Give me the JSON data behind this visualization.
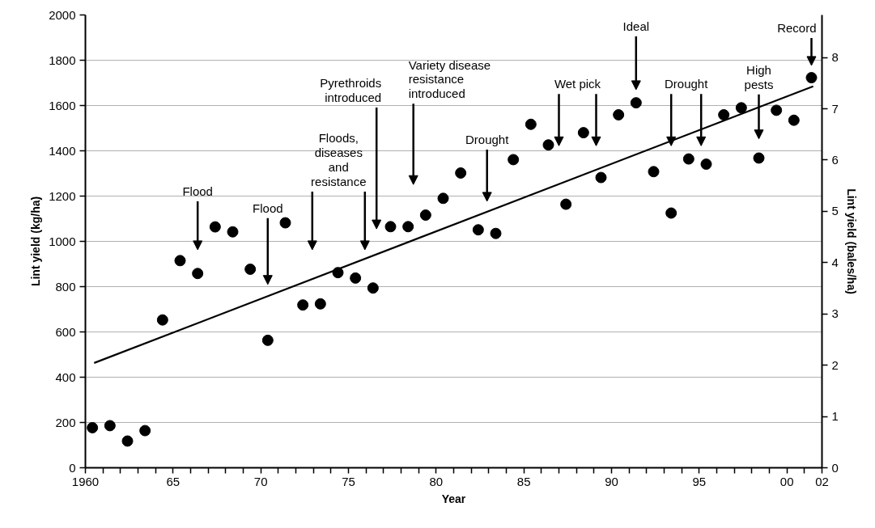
{
  "chart_data": {
    "type": "scatter",
    "xlabel": "Year",
    "ylabel": "Lint yield (kg/ha)",
    "y2label": "Lint yield (bales/ha)",
    "xlim": [
      1960,
      2002
    ],
    "ylim": [
      0,
      2000
    ],
    "y2lim": [
      0,
      8.83
    ],
    "xticks": [
      {
        "value": 1960,
        "label": "1960"
      },
      {
        "value": 1961,
        "label": null
      },
      {
        "value": 1962,
        "label": null
      },
      {
        "value": 1963,
        "label": null
      },
      {
        "value": 1964,
        "label": null
      },
      {
        "value": 1965,
        "label": "65"
      },
      {
        "value": 1966,
        "label": null
      },
      {
        "value": 1967,
        "label": null
      },
      {
        "value": 1968,
        "label": null
      },
      {
        "value": 1969,
        "label": null
      },
      {
        "value": 1970,
        "label": "70"
      },
      {
        "value": 1971,
        "label": null
      },
      {
        "value": 1972,
        "label": null
      },
      {
        "value": 1973,
        "label": null
      },
      {
        "value": 1974,
        "label": null
      },
      {
        "value": 1975,
        "label": "75"
      },
      {
        "value": 1976,
        "label": null
      },
      {
        "value": 1977,
        "label": null
      },
      {
        "value": 1978,
        "label": null
      },
      {
        "value": 1979,
        "label": null
      },
      {
        "value": 1980,
        "label": "80"
      },
      {
        "value": 1981,
        "label": null
      },
      {
        "value": 1982,
        "label": null
      },
      {
        "value": 1983,
        "label": null
      },
      {
        "value": 1984,
        "label": null
      },
      {
        "value": 1985,
        "label": "85"
      },
      {
        "value": 1986,
        "label": null
      },
      {
        "value": 1987,
        "label": null
      },
      {
        "value": 1988,
        "label": null
      },
      {
        "value": 1989,
        "label": null
      },
      {
        "value": 1990,
        "label": "90"
      },
      {
        "value": 1991,
        "label": null
      },
      {
        "value": 1992,
        "label": null
      },
      {
        "value": 1993,
        "label": null
      },
      {
        "value": 1994,
        "label": null
      },
      {
        "value": 1995,
        "label": "95"
      },
      {
        "value": 1996,
        "label": null
      },
      {
        "value": 1997,
        "label": null
      },
      {
        "value": 1998,
        "label": null
      },
      {
        "value": 1999,
        "label": null
      },
      {
        "value": 2000,
        "label": "00"
      },
      {
        "value": 2001,
        "label": null
      },
      {
        "value": 2002,
        "label": "02"
      }
    ],
    "yticks": [
      0,
      200,
      400,
      600,
      800,
      1000,
      1200,
      1400,
      1600,
      1800,
      2000
    ],
    "y2ticks": [
      0,
      1,
      2,
      3,
      4,
      5,
      6,
      7,
      8
    ],
    "grid": "y",
    "series": [
      {
        "marker": "circle",
        "color": "#000000",
        "x": [
          1960.4,
          1961.4,
          1962.4,
          1963.4,
          1964.4,
          1965.4,
          1966.4,
          1967.4,
          1968.4,
          1969.4,
          1970.4,
          1971.4,
          1972.4,
          1973.4,
          1974.4,
          1975.4,
          1976.4,
          1977.4,
          1978.4,
          1979.4,
          1980.4,
          1981.4,
          1982.4,
          1983.4,
          1984.4,
          1985.4,
          1986.4,
          1987.4,
          1988.4,
          1989.4,
          1990.4,
          1991.4,
          1992.4,
          1993.4,
          1994.4,
          1995.4,
          1996.4,
          1997.4,
          1998.4,
          1999.4,
          2000.4,
          2001.4
        ],
        "values": [
          177,
          186,
          118,
          164,
          653,
          915,
          858,
          1064,
          1042,
          877,
          563,
          1082,
          719,
          724,
          862,
          838,
          794,
          1065,
          1065,
          1116,
          1190,
          1302,
          1051,
          1035,
          1361,
          1517,
          1426,
          1164,
          1480,
          1282,
          1559,
          1612,
          1308,
          1125,
          1364,
          1341,
          1559,
          1590,
          1368,
          1579,
          1535,
          1723
        ]
      },
      {
        "type": "line",
        "marker": "none",
        "color": "#000000",
        "x": [
          1960.5,
          2001.5
        ],
        "values": [
          463,
          1685
        ]
      }
    ],
    "annotations": [
      "Flood",
      "Flood",
      "Floods,\ndiseases\nand\nresistance",
      "Pyrethroids\nintroduced",
      "Variety disease\nresistance\nintroduced",
      "Drought",
      "Wet pick",
      "Ideal",
      "Drought",
      "High\npests",
      "Record"
    ]
  }
}
